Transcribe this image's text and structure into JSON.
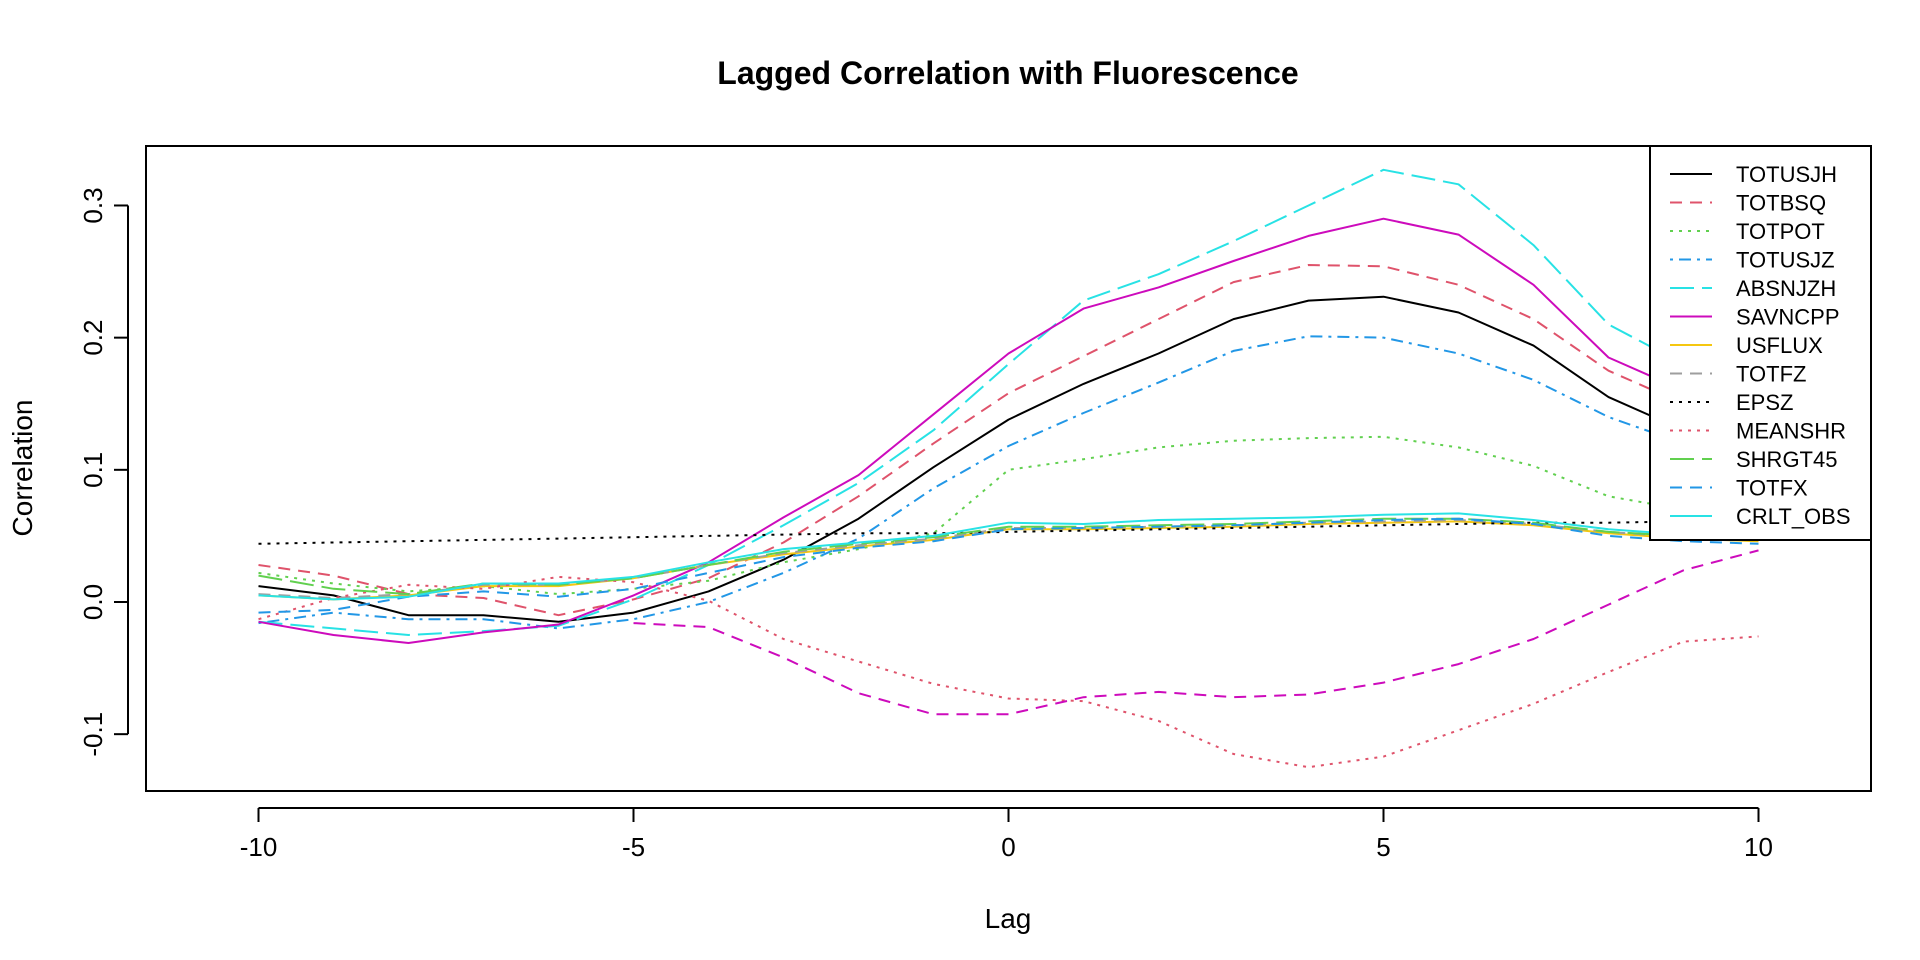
{
  "chart_data": {
    "type": "line",
    "title": "Lagged Correlation with Fluorescence",
    "xlabel": "Lag",
    "ylabel": "Correlation",
    "xlim": [
      -11.5,
      11.5
    ],
    "ylim": [
      -0.143,
      0.345
    ],
    "xticks": [
      -10,
      -5,
      0,
      5,
      10
    ],
    "yticks": [
      -0.1,
      0.0,
      0.1,
      0.2,
      0.3
    ],
    "xtick_labels": [
      "-10",
      "-5",
      "0",
      "5",
      "10"
    ],
    "ytick_labels": [
      "-0.1",
      "0.0",
      "0.1",
      "0.2",
      "0.3"
    ],
    "grid": false,
    "legend_position": "top-right",
    "x": [
      -10,
      -9,
      -8,
      -7,
      -6,
      -5,
      -4,
      -3,
      -2,
      -1,
      0,
      1,
      2,
      3,
      4,
      5,
      6,
      7,
      8,
      9,
      10
    ],
    "series": [
      {
        "name": "TOTUSJH",
        "color": "#000000",
        "dash": "solid",
        "values": [
          0.012,
          0.005,
          -0.01,
          -0.01,
          -0.015,
          -0.008,
          0.008,
          0.032,
          0.063,
          0.102,
          0.138,
          0.165,
          0.188,
          0.214,
          0.228,
          0.231,
          0.219,
          0.194,
          0.155,
          0.13,
          0.12
        ]
      },
      {
        "name": "TOTBSQ",
        "color": "#DF536B",
        "dash": "dashed",
        "values": [
          0.028,
          0.02,
          0.006,
          0.003,
          -0.01,
          0.002,
          0.018,
          0.045,
          0.08,
          0.12,
          0.158,
          0.186,
          0.214,
          0.242,
          0.255,
          0.254,
          0.24,
          0.214,
          0.175,
          0.15,
          0.14
        ]
      },
      {
        "name": "TOTPOT",
        "color": "#61D04F",
        "dash": "dotted",
        "values": [
          0.022,
          0.014,
          0.008,
          0.012,
          0.006,
          0.01,
          0.016,
          0.03,
          0.04,
          0.052,
          0.1,
          0.108,
          0.117,
          0.122,
          0.124,
          0.125,
          0.117,
          0.103,
          0.08,
          0.07,
          0.065
        ]
      },
      {
        "name": "TOTUSJZ",
        "color": "#2297E6",
        "dash": "dotdash",
        "values": [
          -0.016,
          -0.008,
          -0.013,
          -0.013,
          -0.02,
          -0.013,
          0.0,
          0.022,
          0.048,
          0.086,
          0.118,
          0.143,
          0.166,
          0.19,
          0.201,
          0.2,
          0.188,
          0.168,
          0.14,
          0.12,
          0.11
        ]
      },
      {
        "name": "ABSNJZH",
        "color": "#28E2E5",
        "dash": "longdash",
        "values": [
          -0.015,
          -0.02,
          -0.025,
          -0.022,
          -0.018,
          0.002,
          0.028,
          0.058,
          0.09,
          0.13,
          0.18,
          0.228,
          0.248,
          0.273,
          0.3,
          0.327,
          0.316,
          0.27,
          0.21,
          0.18,
          0.17
        ]
      },
      {
        "name": "SAVNCPP",
        "color": "#CD0BBC",
        "dash": "solid",
        "values": [
          -0.015,
          -0.025,
          -0.031,
          -0.023,
          -0.017,
          0.005,
          0.03,
          0.064,
          0.096,
          0.142,
          0.188,
          0.222,
          0.238,
          0.258,
          0.277,
          0.29,
          0.278,
          0.24,
          0.185,
          0.16,
          0.15
        ]
      },
      {
        "name": "USFLUX",
        "color": "#F5C710",
        "dash": "solid",
        "values": [
          0.005,
          0.002,
          0.005,
          0.012,
          0.012,
          0.018,
          0.028,
          0.036,
          0.042,
          0.047,
          0.055,
          0.055,
          0.056,
          0.057,
          0.059,
          0.06,
          0.061,
          0.058,
          0.052,
          0.048,
          0.046
        ]
      },
      {
        "name": "TOTFZ",
        "color": "#9E9E9E",
        "dash": "dashed",
        "values": [
          0.006,
          0.003,
          0.006,
          0.013,
          0.013,
          0.018,
          0.028,
          0.037,
          0.043,
          0.048,
          0.056,
          0.056,
          0.057,
          0.058,
          0.06,
          0.061,
          0.062,
          0.059,
          0.053,
          0.049,
          0.047
        ]
      },
      {
        "name": "EPSZ",
        "color": "#000000",
        "dash": "dotted",
        "values": [
          0.044,
          0.045,
          0.046,
          0.047,
          0.048,
          0.049,
          0.05,
          0.051,
          0.052,
          0.052,
          0.053,
          0.054,
          0.055,
          0.056,
          0.057,
          0.058,
          0.059,
          0.06,
          0.06,
          0.061,
          0.062
        ]
      },
      {
        "name": "MEANSHR",
        "color": "#DF536B",
        "dash": "dotted",
        "values": [
          -0.013,
          0.003,
          0.013,
          0.01,
          0.019,
          0.015,
          0.001,
          -0.028,
          -0.045,
          -0.062,
          -0.073,
          -0.075,
          -0.09,
          -0.115,
          -0.125,
          -0.117,
          -0.097,
          -0.077,
          -0.053,
          -0.03,
          -0.026
        ]
      },
      {
        "name": "SHRGT45",
        "color": "#61D04F",
        "dash": "longdash",
        "values": [
          0.02,
          0.01,
          0.006,
          0.014,
          0.013,
          0.018,
          0.028,
          0.038,
          0.044,
          0.049,
          0.057,
          0.057,
          0.058,
          0.059,
          0.061,
          0.063,
          0.063,
          0.06,
          0.053,
          0.05,
          0.048
        ]
      },
      {
        "name": "TOTFX",
        "color": "#2297E6",
        "dash": "dashed",
        "values": [
          -0.008,
          -0.006,
          0.004,
          0.008,
          0.004,
          0.01,
          0.022,
          0.034,
          0.041,
          0.046,
          0.055,
          0.056,
          0.057,
          0.058,
          0.06,
          0.062,
          0.063,
          0.059,
          0.05,
          0.046,
          0.044
        ]
      },
      {
        "name": "CRLT_OBS",
        "color": "#28E2E5",
        "dash": "solid",
        "values": [
          0.005,
          0.002,
          0.004,
          0.014,
          0.014,
          0.019,
          0.03,
          0.04,
          0.045,
          0.05,
          0.06,
          0.059,
          0.062,
          0.063,
          0.064,
          0.066,
          0.067,
          0.062,
          0.055,
          0.051,
          0.049
        ]
      },
      {
        "name": "",
        "color": "#CD0BBC",
        "dash": "dashed",
        "show_in_legend": false,
        "values": [
          null,
          null,
          null,
          null,
          null,
          -0.016,
          -0.019,
          -0.042,
          -0.069,
          -0.085,
          -0.085,
          -0.072,
          -0.068,
          -0.072,
          -0.07,
          -0.061,
          -0.047,
          -0.028,
          -0.002,
          0.024,
          0.039
        ]
      }
    ]
  }
}
